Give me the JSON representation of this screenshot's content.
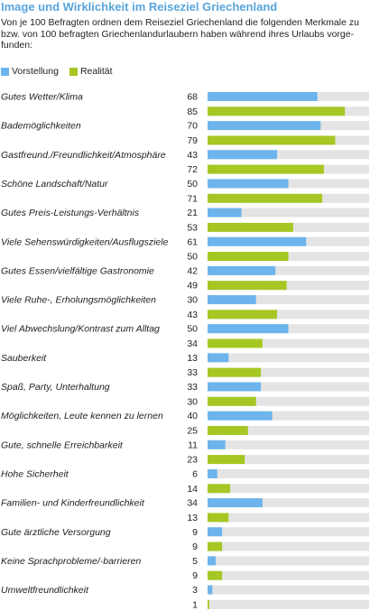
{
  "header": {
    "title": "Image und Wirklichkeit im Reiseziel Griechenland",
    "intro": "Von je 100 Befragten ordnen dem Reiseziel Griechenland die folgenden Merkmale zu bzw. von 100 befragten Griechenlandurlaubern haben während ihres Urlaubs vorge-funden:"
  },
  "colors": {
    "vorstellung": "#6db4ec",
    "realitaet": "#a6c723",
    "track": "#e4e4e4"
  },
  "chart_data": {
    "type": "bar",
    "orientation": "horizontal",
    "title": "Image und Wirklichkeit im Reiseziel Griechenland",
    "xlim": [
      0,
      100
    ],
    "legend": "top-left",
    "categories": [
      "Gutes Wetter/Klima",
      "Bademöglichkeiten",
      "Gastfreund./Freundlichkeit/Atmosphäre",
      "Schöne Landschaft/Natur",
      "Gutes Preis-Leistungs-Verhältnis",
      "Viele Sehenswürdigkeiten/Ausflugsziele",
      "Gutes Essen/vielfältige Gastronomie",
      "Viele Ruhe-, Erholungsmöglichkeiten",
      "Viel Abwechslung/Kontrast zum Alltag",
      "Sauberkeit",
      "Spaß, Party, Unterhaltung",
      "Möglichkeiten, Leute kennen zu lernen",
      "Gute, schnelle Erreichbarkeit",
      "Hohe Sicherheit",
      "Familien- und Kinderfreundlichkeit",
      "Gute ärztliche Versorgung",
      "Keine Sprachprobleme/-barrieren",
      "Umweltfreundlichkeit"
    ],
    "series": [
      {
        "name": "Vorstellung",
        "values": [
          68,
          70,
          43,
          50,
          21,
          61,
          42,
          30,
          50,
          13,
          33,
          40,
          11,
          6,
          34,
          9,
          5,
          3
        ]
      },
      {
        "name": "Realität",
        "values": [
          85,
          79,
          72,
          71,
          53,
          50,
          49,
          43,
          34,
          33,
          30,
          25,
          23,
          14,
          13,
          9,
          9,
          1
        ]
      }
    ]
  }
}
